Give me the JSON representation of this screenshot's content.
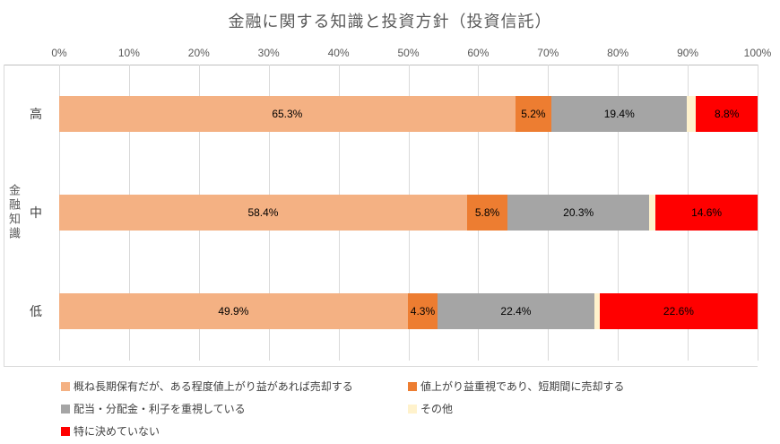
{
  "chart_data": {
    "type": "bar",
    "stacked": true,
    "orientation": "horizontal",
    "title": "金融に関する知識と投資方針（投資信託）",
    "y_axis_title": "金融知識",
    "categories": [
      "高",
      "中",
      "低"
    ],
    "x_ticks": [
      "0%",
      "10%",
      "20%",
      "30%",
      "40%",
      "50%",
      "60%",
      "70%",
      "80%",
      "90%",
      "100%"
    ],
    "xlim": [
      0,
      100
    ],
    "grid": true,
    "legend_position": "bottom",
    "series": [
      {
        "name": "概ね長期保有だが、ある程度値上がり益があれば売却する",
        "color": "#F4B183",
        "values": [
          65.3,
          58.4,
          49.9
        ],
        "labels": [
          "65.3%",
          "58.4%",
          "49.9%"
        ]
      },
      {
        "name": "値上がり益重視であり、短期間に売却する",
        "color": "#ED7D31",
        "values": [
          5.2,
          5.8,
          4.3
        ],
        "labels": [
          "5.2%",
          "5.8%",
          "4.3%"
        ]
      },
      {
        "name": "配当・分配金・利子を重視している",
        "color": "#A5A5A5",
        "values": [
          19.4,
          20.3,
          22.4
        ],
        "labels": [
          "19.4%",
          "20.3%",
          "22.4%"
        ]
      },
      {
        "name": "その他",
        "color": "#FFF2CC",
        "values": [
          1.3,
          0.9,
          0.8
        ],
        "labels": [
          "",
          "",
          ""
        ]
      },
      {
        "name": "特に決めていない",
        "color": "#FF0000",
        "values": [
          8.8,
          14.6,
          22.6
        ],
        "labels": [
          "8.8%",
          "14.6%",
          "22.6%"
        ]
      }
    ]
  }
}
